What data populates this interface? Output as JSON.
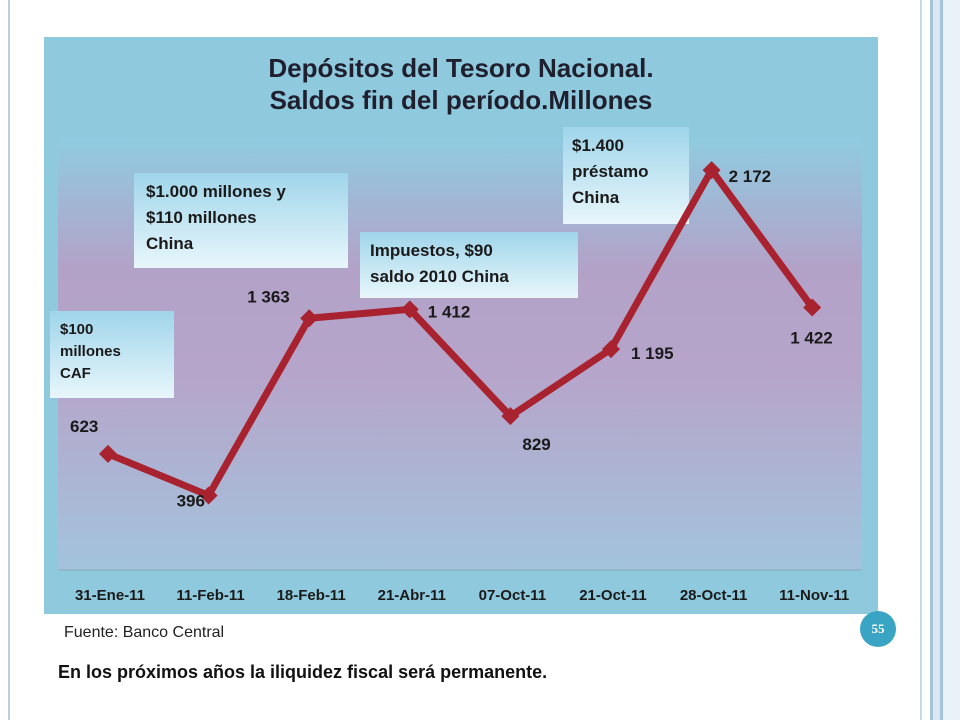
{
  "chart_data": {
    "type": "line",
    "title": [
      "Depósitos del Tesoro Nacional.",
      "Saldos fin del período.Millones"
    ],
    "categories": [
      "31-Ene-11",
      "11-Feb-11",
      "18-Feb-11",
      "21-Abr-11",
      "07-Oct-11",
      "21-Oct-11",
      "28-Oct-11",
      "11-Nov-11"
    ],
    "series": [
      {
        "values": [
          623,
          396,
          1363,
          1412,
          829,
          1195,
          2172,
          1422
        ]
      }
    ],
    "data_labels": [
      "623",
      "396",
      "1 363",
      "1 412",
      "829",
      "1 195",
      "2 172",
      "1 422"
    ],
    "ylim": [
      0,
      2500
    ],
    "line_color": "#a8222f",
    "grid": false,
    "legend": "none",
    "annotations": [
      {
        "text": [
          "$100",
          "millones",
          "CAF"
        ]
      },
      {
        "text": [
          "$1.000 millones y",
          "$110 millones",
          "China"
        ]
      },
      {
        "text": [
          "Impuestos, $90",
          "saldo 2010 China"
        ]
      },
      {
        "text": [
          "$1.400",
          "préstamo",
          "China"
        ]
      }
    ]
  },
  "source": "Fuente: Banco Central",
  "caption": "En los próximos años la iliquidez fiscal será permanente.",
  "page_number": "55",
  "colors": {
    "chart_background": "#8ec9dd",
    "accent": "#3aa4c4",
    "series": "#a8222f"
  }
}
